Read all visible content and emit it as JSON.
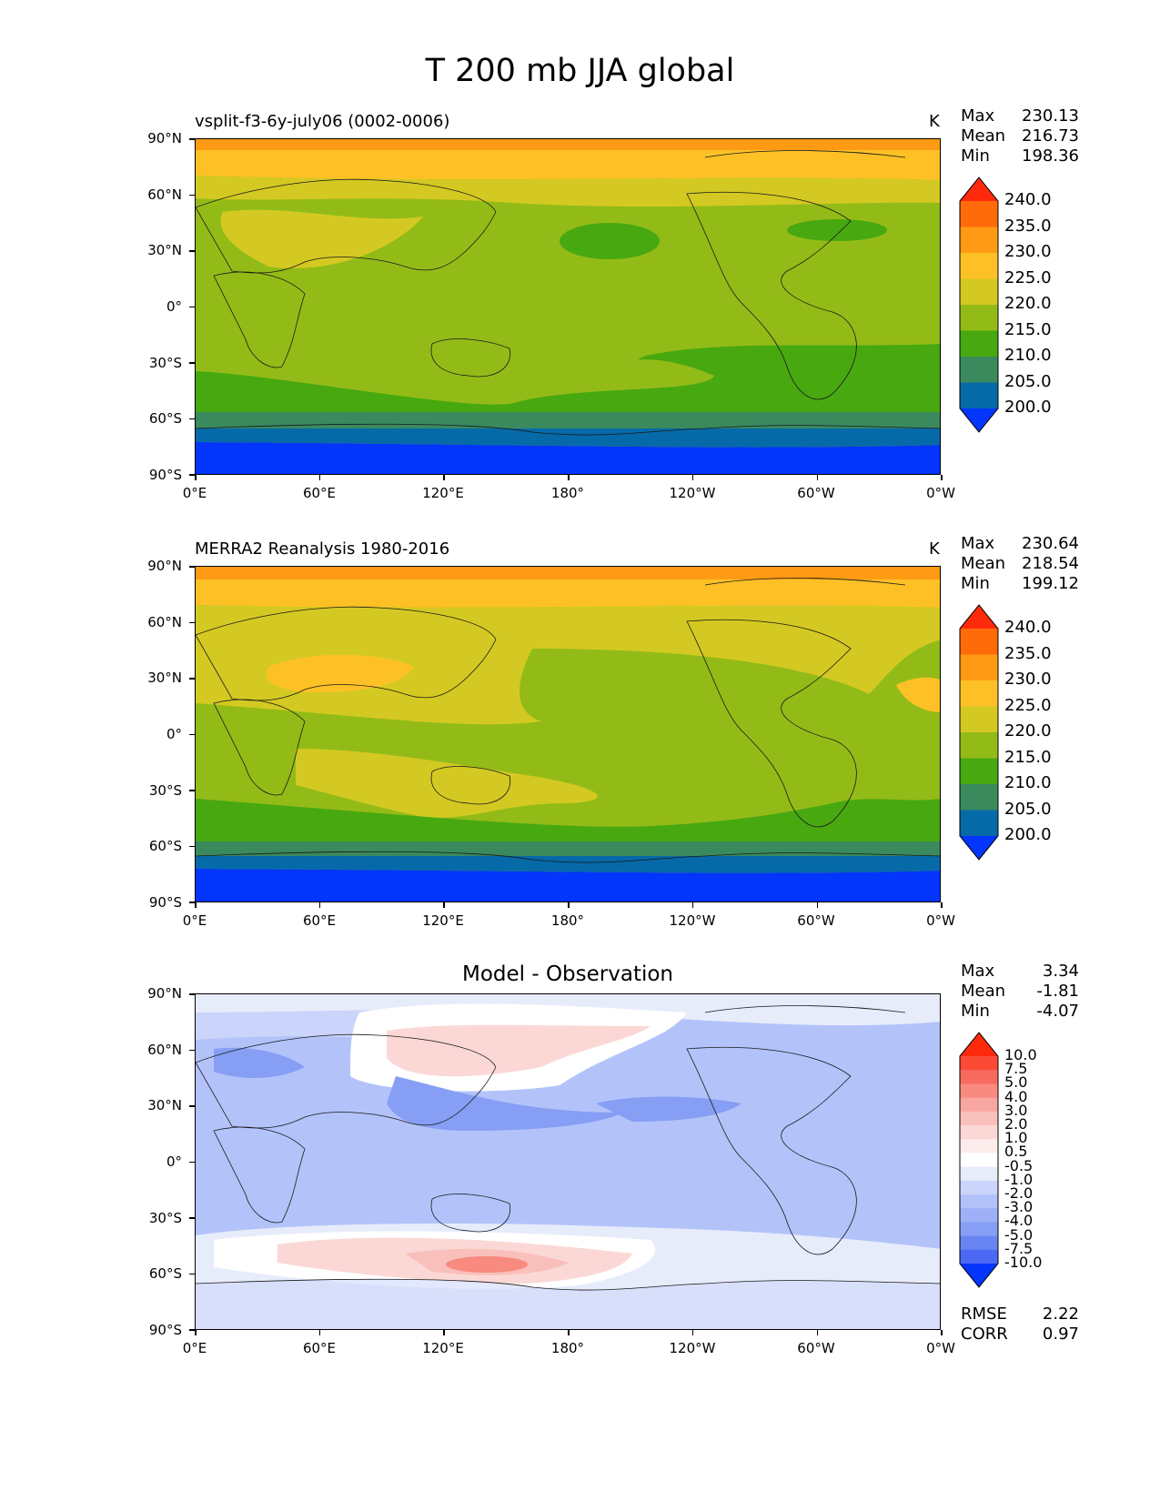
{
  "figure": {
    "title": "T 200 mb JJA global"
  },
  "axes": {
    "y_ticks": [
      "90°N",
      "60°N",
      "30°N",
      "0°",
      "30°S",
      "60°S",
      "90°S"
    ],
    "x_ticks": [
      "0°E",
      "60°E",
      "120°E",
      "180°",
      "120°W",
      "60°W",
      "0°W"
    ]
  },
  "panels": [
    {
      "title": "vsplit-f3-6y-july06 (0002-0006)",
      "unit": "K",
      "stats": {
        "max_label": "Max",
        "max": "230.13",
        "mean_label": "Mean",
        "mean": "216.73",
        "min_label": "Min",
        "min": "198.36"
      }
    },
    {
      "title": "MERRA2 Reanalysis 1980-2016",
      "unit": "K",
      "stats": {
        "max_label": "Max",
        "max": "230.64",
        "mean_label": "Mean",
        "mean": "218.54",
        "min_label": "Min",
        "min": "199.12"
      }
    },
    {
      "title": "Model - Observation",
      "unit": "",
      "stats": {
        "max_label": "Max",
        "max": "3.34",
        "mean_label": "Mean",
        "mean": "-1.81",
        "min_label": "Min",
        "min": "-4.07"
      },
      "rmse_label": "RMSE",
      "rmse": "2.22",
      "corr_label": "CORR",
      "corr": "0.97"
    }
  ],
  "colorbars": {
    "temperature": {
      "levels": [
        "240.0",
        "235.0",
        "230.0",
        "225.0",
        "220.0",
        "215.0",
        "210.0",
        "205.0",
        "200.0"
      ],
      "colors": [
        "#ff2a0c",
        "#ff6a0a",
        "#ff9a14",
        "#fdc126",
        "#d4c922",
        "#93bb17",
        "#48a810",
        "#3a8a5e",
        "#066aa8",
        "#0335fc"
      ]
    },
    "difference": {
      "levels": [
        "10.0",
        "7.5",
        "5.0",
        "4.0",
        "3.0",
        "2.0",
        "1.0",
        "0.5",
        "-0.5",
        "-1.0",
        "-2.0",
        "-3.0",
        "-4.0",
        "-5.0",
        "-7.5",
        "-10.0"
      ],
      "colors": [
        "#ff2a0c",
        "#fb4a36",
        "#f86a5e",
        "#f88a80",
        "#f8a6a0",
        "#f9c0bb",
        "#fbd8d6",
        "#fdecec",
        "#ffffff",
        "#e7ecfb",
        "#cbd5fb",
        "#b3c3fa",
        "#9eb1f7",
        "#869ef4",
        "#6885f2",
        "#4b68f4",
        "#0335fc"
      ]
    }
  }
}
